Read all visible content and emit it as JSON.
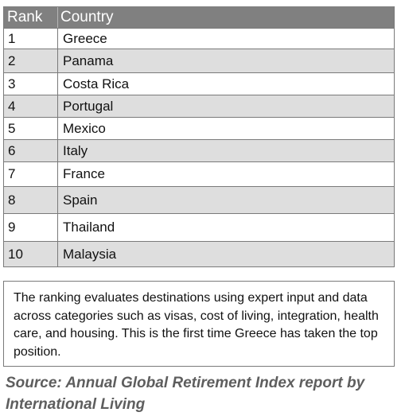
{
  "table": {
    "headers": {
      "rank": "Rank",
      "country": "Country"
    },
    "rows": [
      {
        "rank": "1",
        "country": "Greece"
      },
      {
        "rank": "2",
        "country": "Panama"
      },
      {
        "rank": "3",
        "country": "Costa Rica"
      },
      {
        "rank": "4",
        "country": "Portugal"
      },
      {
        "rank": "5",
        "country": "Mexico"
      },
      {
        "rank": "6",
        "country": "Italy"
      },
      {
        "rank": "7",
        "country": "France"
      },
      {
        "rank": "8",
        "country": "Spain"
      },
      {
        "rank": "9",
        "country": "Thailand"
      },
      {
        "rank": "10",
        "country": "Malaysia"
      }
    ]
  },
  "note": {
    "text": "The ranking evaluates destinations using expert input and data across categories such as visas, cost of living, integration, health care, and housing. This is the first time Greece has taken the top position."
  },
  "source": {
    "text": "Source: Annual Global Retirement Index report by International Living"
  },
  "colors": {
    "header_bg": "#808080",
    "alt_row_bg": "#dedede",
    "source_text": "#5e5e5e"
  }
}
